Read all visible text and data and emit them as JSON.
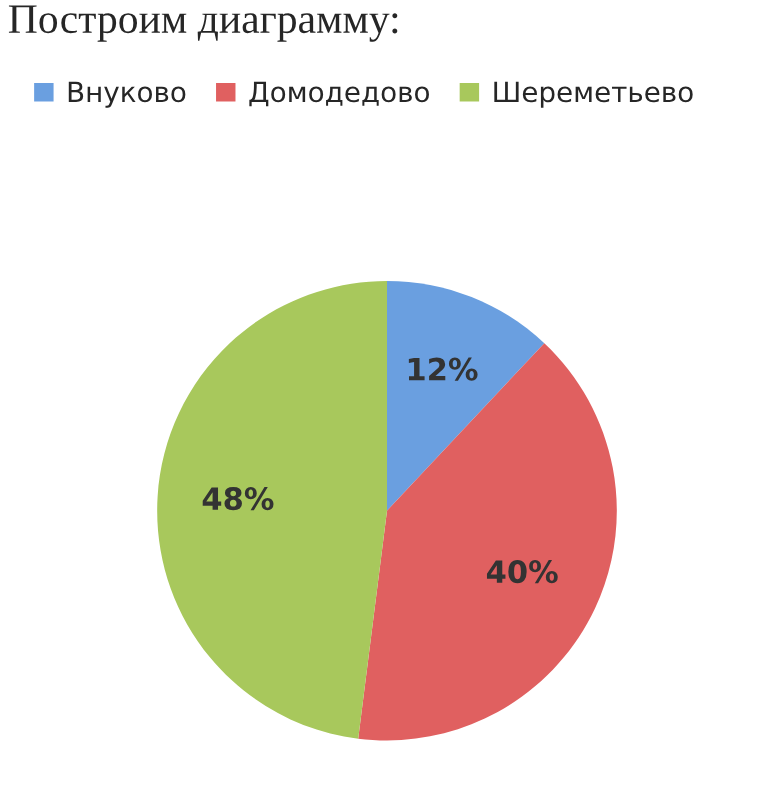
{
  "chart_data": {
    "type": "pie",
    "title": "Построим диаграмму:",
    "categories": [
      "Внуково",
      "Домодедово",
      "Шереметьево"
    ],
    "values": [
      12,
      40,
      48
    ],
    "colors": [
      "#6a9fe0",
      "#e06060",
      "#a8c85c"
    ],
    "value_labels": [
      "12%",
      "40%",
      "48%"
    ],
    "legend": "top"
  }
}
